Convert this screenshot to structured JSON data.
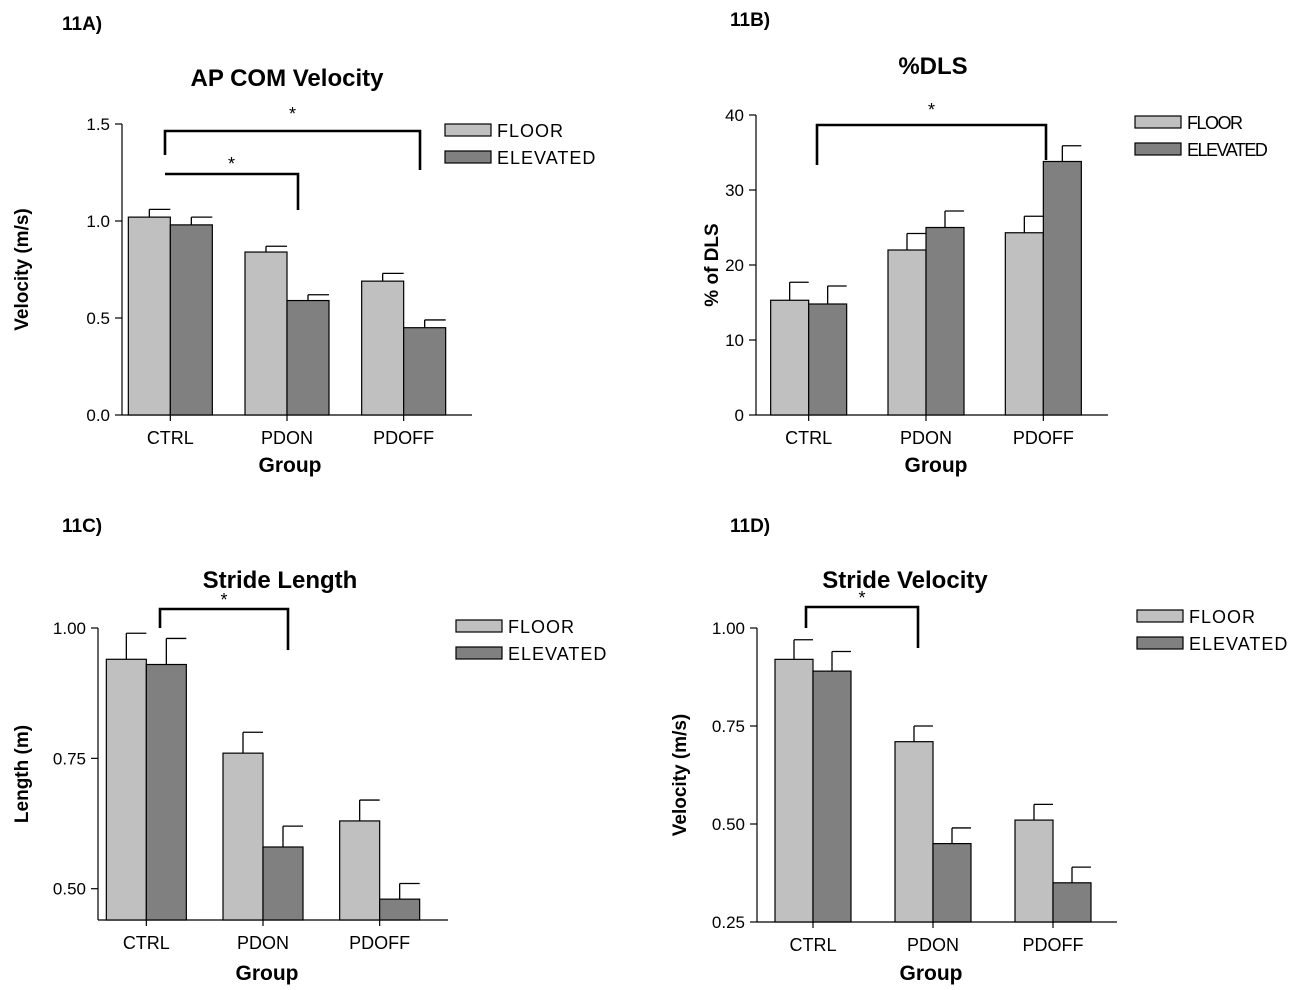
{
  "colors": {
    "floor": "#c0c0c0",
    "elevated": "#808080",
    "ink": "#000000"
  },
  "chart_data": [
    {
      "type": "bar",
      "panel_label": "11A)",
      "title": "AP COM Velocity",
      "xlabel": "Group",
      "ylabel": "Velocity (m/s)",
      "ylim": [
        0,
        1.5
      ],
      "yticks": [
        "0.0",
        "0.5",
        "1.0",
        "1.5"
      ],
      "categories": [
        "CTRL",
        "PDON",
        "PDOFF"
      ],
      "series": [
        {
          "name": "FLOOR",
          "values": [
            1.02,
            0.84,
            0.69
          ],
          "errors": [
            0.04,
            0.03,
            0.04
          ]
        },
        {
          "name": "ELEVATED",
          "values": [
            0.98,
            0.59,
            0.45
          ],
          "errors": [
            0.04,
            0.03,
            0.04
          ]
        }
      ],
      "legend": "top-right",
      "significance": [
        {
          "from": "CTRL",
          "to": "PDON",
          "label": "*"
        },
        {
          "from": "CTRL",
          "to": "PDOFF",
          "label": "*"
        }
      ]
    },
    {
      "type": "bar",
      "panel_label": "11B)",
      "title": "%DLS",
      "xlabel": "Group",
      "ylabel": "% of DLS",
      "ylim": [
        0,
        40
      ],
      "yticks": [
        "0",
        "10",
        "20",
        "30",
        "40"
      ],
      "categories": [
        "CTRL",
        "PDON",
        "PDOFF"
      ],
      "series": [
        {
          "name": "FLOOR",
          "values": [
            15.3,
            22.0,
            24.3
          ],
          "errors": [
            2.4,
            2.2,
            2.2
          ]
        },
        {
          "name": "ELEVATED",
          "values": [
            14.8,
            25.0,
            33.8
          ],
          "errors": [
            2.4,
            2.2,
            2.1
          ]
        }
      ],
      "legend": "top-right",
      "significance": [
        {
          "from": "CTRL",
          "to": "PDOFF",
          "label": "*"
        }
      ]
    },
    {
      "type": "bar",
      "panel_label": "11C)",
      "title": "Stride Length",
      "xlabel": "Group",
      "ylabel": "Length (m)",
      "ylim": [
        0.44,
        1.0
      ],
      "yticks": [
        "0.50",
        "0.75",
        "1.00"
      ],
      "categories": [
        "CTRL",
        "PDON",
        "PDOFF"
      ],
      "series": [
        {
          "name": "FLOOR",
          "values": [
            0.94,
            0.76,
            0.63
          ],
          "errors": [
            0.05,
            0.04,
            0.04
          ]
        },
        {
          "name": "ELEVATED",
          "values": [
            0.93,
            0.58,
            0.48
          ],
          "errors": [
            0.05,
            0.04,
            0.03
          ]
        }
      ],
      "legend": "top-right",
      "significance": [
        {
          "from": "CTRL",
          "to": "PDON",
          "label": "*"
        }
      ]
    },
    {
      "type": "bar",
      "panel_label": "11D)",
      "title": "Stride Velocity",
      "xlabel": "Group",
      "ylabel": "Velocity (m/s)",
      "ylim": [
        0.25,
        1.0
      ],
      "yticks": [
        "0.25",
        "0.50",
        "0.75",
        "1.00"
      ],
      "categories": [
        "CTRL",
        "PDON",
        "PDOFF"
      ],
      "series": [
        {
          "name": "FLOOR",
          "values": [
            0.92,
            0.71,
            0.51
          ],
          "errors": [
            0.05,
            0.04,
            0.04
          ]
        },
        {
          "name": "ELEVATED",
          "values": [
            0.89,
            0.45,
            0.35
          ],
          "errors": [
            0.05,
            0.04,
            0.04
          ]
        }
      ],
      "legend": "top-right",
      "significance": [
        {
          "from": "CTRL",
          "to": "PDON",
          "label": "*"
        }
      ]
    }
  ]
}
